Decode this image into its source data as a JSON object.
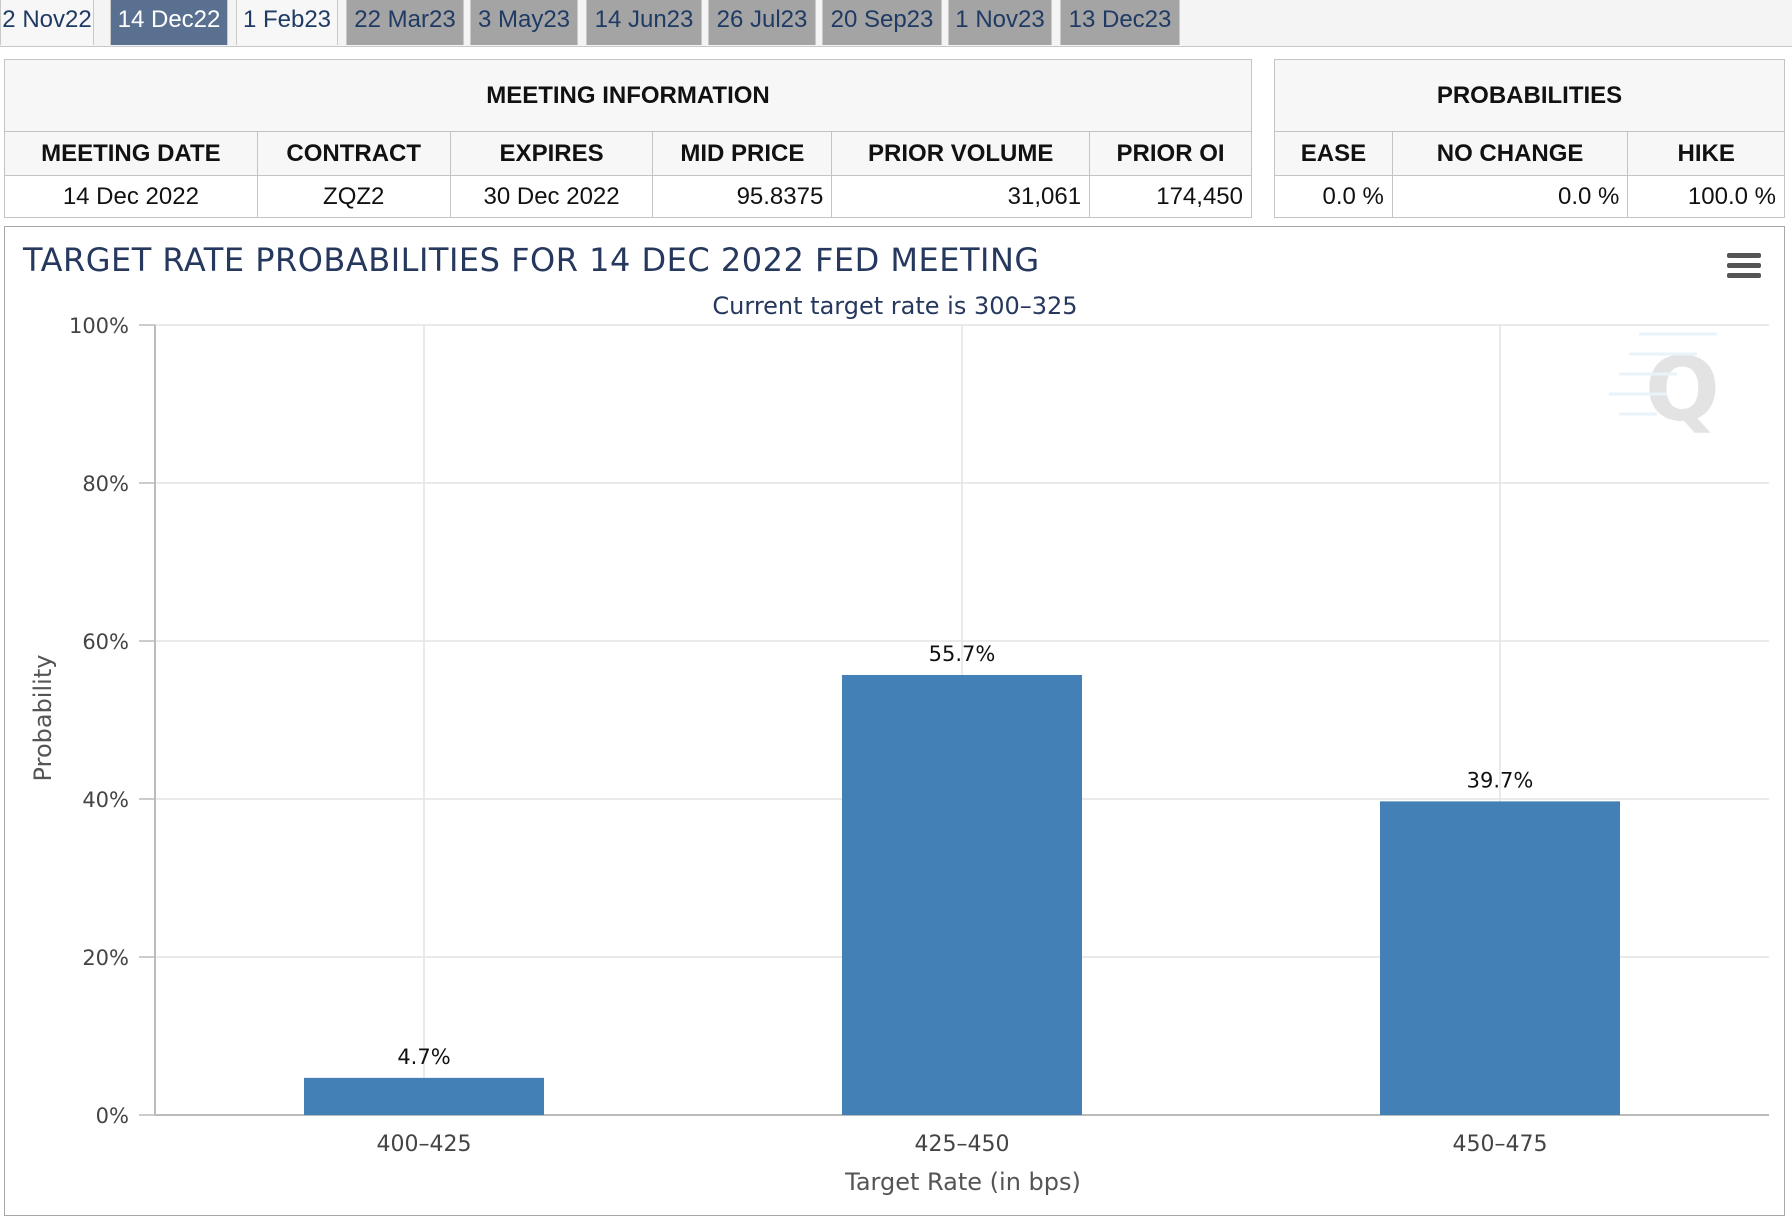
{
  "tabs": [
    {
      "label": "2 Nov22",
      "state": "plain"
    },
    {
      "label": "14 Dec22",
      "state": "active"
    },
    {
      "label": "1 Feb23",
      "state": "plain"
    },
    {
      "label": "22 Mar23",
      "state": "future"
    },
    {
      "label": "3 May23",
      "state": "future"
    },
    {
      "label": "14 Jun23",
      "state": "future"
    },
    {
      "label": "26 Jul23",
      "state": "future"
    },
    {
      "label": "20 Sep23",
      "state": "future"
    },
    {
      "label": "1 Nov23",
      "state": "future"
    },
    {
      "label": "13 Dec23",
      "state": "future"
    }
  ],
  "meeting_info": {
    "title": "MEETING INFORMATION",
    "headers": [
      "MEETING DATE",
      "CONTRACT",
      "EXPIRES",
      "MID PRICE",
      "PRIOR VOLUME",
      "PRIOR OI"
    ],
    "values": [
      "14 Dec 2022",
      "ZQZ2",
      "30 Dec 2022",
      "95.8375",
      "31,061",
      "174,450"
    ]
  },
  "probabilities": {
    "title": "PROBABILITIES",
    "headers": [
      "EASE",
      "NO CHANGE",
      "HIKE"
    ],
    "values": [
      "0.0 %",
      "0.0 %",
      "100.0 %"
    ]
  },
  "colors": {
    "bar": "#4280b5",
    "title": "#26385e",
    "active_tab": "#5a7090",
    "future_tab": "#a4a4a4"
  },
  "chart_data": {
    "type": "bar",
    "title": "TARGET RATE PROBABILITIES FOR 14 DEC 2022 FED MEETING",
    "subtitle": "Current target rate is 300–325",
    "xlabel": "Target Rate (in bps)",
    "ylabel": "Probability",
    "categories": [
      "400–425",
      "425–450",
      "450–475"
    ],
    "values": [
      4.7,
      55.7,
      39.7
    ],
    "data_labels": [
      "4.7%",
      "55.7%",
      "39.7%"
    ],
    "ylim": [
      0,
      100
    ],
    "yticks": [
      0,
      20,
      40,
      60,
      80,
      100
    ],
    "ytick_labels": [
      "0%",
      "20%",
      "40%",
      "60%",
      "80%",
      "100%"
    ],
    "grid": true,
    "legend": "none"
  }
}
